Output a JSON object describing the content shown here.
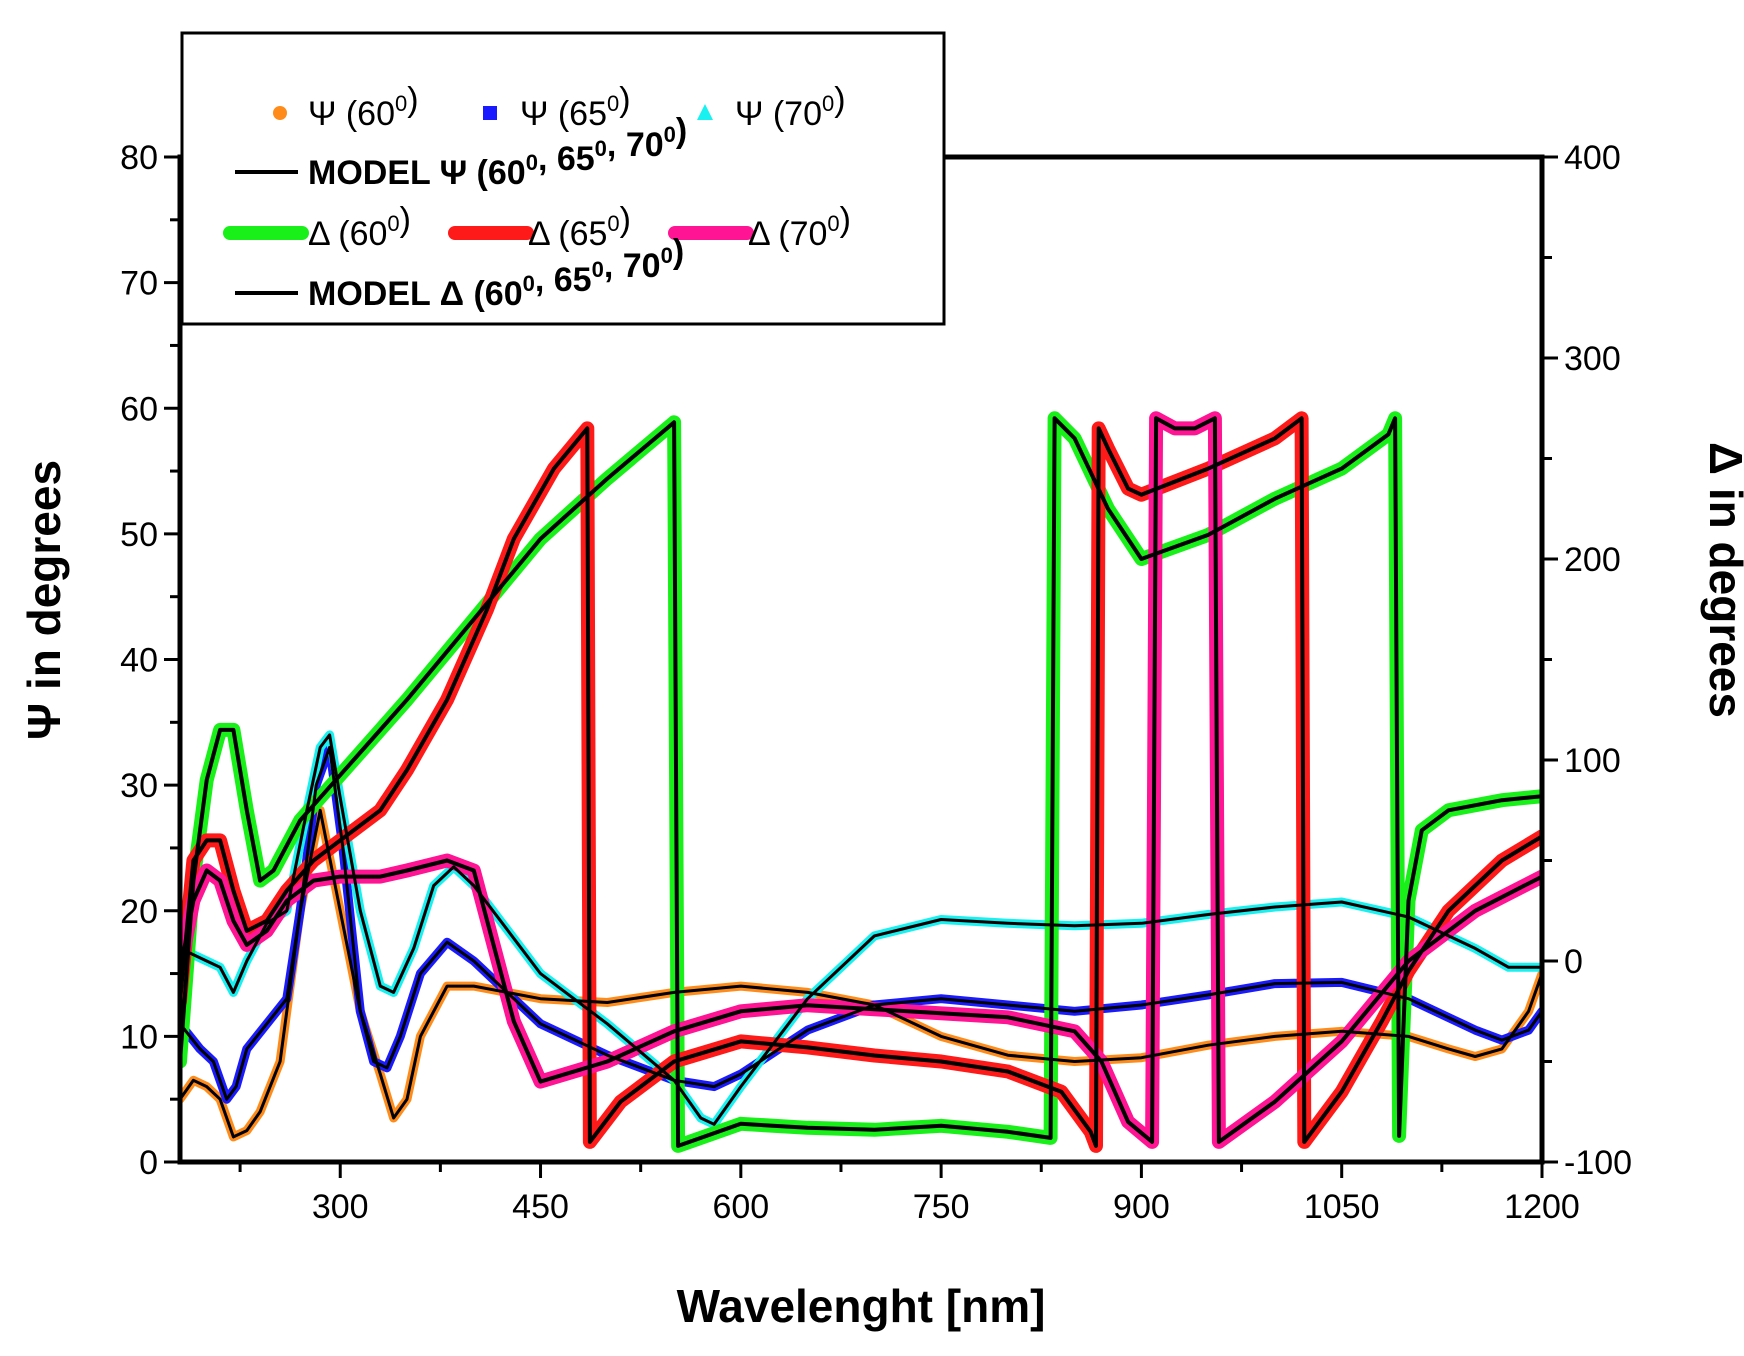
{
  "chart_data": {
    "type": "line",
    "xlabel": "Wavelenght [nm]",
    "ylabel_left": "Ψ in degrees",
    "ylabel_right": "Δ in degrees",
    "xlim": [
      180,
      1200
    ],
    "ylim_left": [
      0,
      80
    ],
    "ylim_right": [
      -100,
      400
    ],
    "x_ticks": [
      300,
      450,
      600,
      750,
      900,
      1050,
      1200
    ],
    "y_left_ticks": [
      0,
      10,
      20,
      30,
      40,
      50,
      60,
      70,
      80
    ],
    "y_right_ticks": [
      -100,
      0,
      100,
      200,
      300,
      400
    ],
    "grid": false,
    "legend_position": "top-left",
    "legend": [
      {
        "label": "Ψ (60",
        "sup": "0",
        "tail": ")",
        "kind": "marker-circle",
        "color": "#ff8c1a"
      },
      {
        "label": "Ψ (65",
        "sup": "0",
        "tail": ")",
        "kind": "marker-square",
        "color": "#1a1aff"
      },
      {
        "label": "Ψ (70",
        "sup": "0",
        "tail": ")",
        "kind": "marker-triangle",
        "color": "#19f0f0"
      },
      {
        "label": "MODEL Ψ (60",
        "sup": "0",
        "tail": ", 65",
        "sup2": "0",
        "tail2": ", 70",
        "sup3": "0",
        "tail3": ")",
        "kind": "line",
        "color": "#000000"
      },
      {
        "label": "Δ (60",
        "sup": "0",
        "tail": ")",
        "kind": "thick-line",
        "color": "#19f019"
      },
      {
        "label": "Δ (65",
        "sup": "0",
        "tail": ")",
        "kind": "thick-line",
        "color": "#ff1a1a"
      },
      {
        "label": "Δ (70",
        "sup": "0",
        "tail": ")",
        "kind": "thick-line",
        "color": "#ff1493"
      },
      {
        "label": "MODEL Δ (60",
        "sup": "0",
        "tail": ", 65",
        "sup2": "0",
        "tail2": ", 70",
        "sup3": "0",
        "tail3": ")",
        "kind": "line",
        "color": "#000000"
      }
    ],
    "series": [
      {
        "name": "Ψ (60°)",
        "axis": "left",
        "color": "#ff8c1a",
        "width": 9,
        "points": [
          [
            180,
            5
          ],
          [
            190,
            6.5
          ],
          [
            200,
            6
          ],
          [
            210,
            5
          ],
          [
            220,
            2
          ],
          [
            230,
            2.5
          ],
          [
            240,
            4
          ],
          [
            255,
            8
          ],
          [
            270,
            20
          ],
          [
            285,
            28
          ],
          [
            300,
            20
          ],
          [
            315,
            12
          ],
          [
            330,
            7
          ],
          [
            340,
            3.5
          ],
          [
            350,
            5
          ],
          [
            360,
            10
          ],
          [
            380,
            14
          ],
          [
            400,
            14
          ],
          [
            450,
            13
          ],
          [
            500,
            12.7
          ],
          [
            550,
            13.5
          ],
          [
            600,
            14
          ],
          [
            650,
            13.5
          ],
          [
            700,
            12.5
          ],
          [
            750,
            10
          ],
          [
            800,
            8.5
          ],
          [
            850,
            8
          ],
          [
            900,
            8.3
          ],
          [
            950,
            9.3
          ],
          [
            1000,
            10
          ],
          [
            1050,
            10.4
          ],
          [
            1100,
            10
          ],
          [
            1130,
            9
          ],
          [
            1150,
            8.4
          ],
          [
            1170,
            9
          ],
          [
            1190,
            12
          ],
          [
            1200,
            15
          ]
        ]
      },
      {
        "name": "Ψ (65°)",
        "axis": "left",
        "color": "#1a1aff",
        "width": 9,
        "points": [
          [
            180,
            11
          ],
          [
            195,
            9
          ],
          [
            205,
            8
          ],
          [
            215,
            5
          ],
          [
            222,
            6
          ],
          [
            230,
            9
          ],
          [
            245,
            11
          ],
          [
            260,
            13
          ],
          [
            270,
            20
          ],
          [
            282,
            30
          ],
          [
            292,
            33
          ],
          [
            302,
            25
          ],
          [
            315,
            12
          ],
          [
            325,
            8
          ],
          [
            335,
            7.5
          ],
          [
            345,
            10
          ],
          [
            360,
            15
          ],
          [
            380,
            17.5
          ],
          [
            400,
            16
          ],
          [
            450,
            11
          ],
          [
            500,
            8.5
          ],
          [
            550,
            6.5
          ],
          [
            580,
            6
          ],
          [
            600,
            7
          ],
          [
            650,
            10.5
          ],
          [
            700,
            12.5
          ],
          [
            750,
            13
          ],
          [
            800,
            12.5
          ],
          [
            850,
            12
          ],
          [
            900,
            12.5
          ],
          [
            950,
            13.3
          ],
          [
            1000,
            14.2
          ],
          [
            1050,
            14.3
          ],
          [
            1100,
            13
          ],
          [
            1150,
            10.5
          ],
          [
            1170,
            9.7
          ],
          [
            1190,
            10.5
          ],
          [
            1200,
            12
          ]
        ]
      },
      {
        "name": "Ψ (70°)",
        "axis": "left",
        "color": "#19f0f0",
        "width": 9,
        "points": [
          [
            180,
            17
          ],
          [
            200,
            16
          ],
          [
            210,
            15.5
          ],
          [
            220,
            13.5
          ],
          [
            230,
            16
          ],
          [
            245,
            19
          ],
          [
            260,
            20
          ],
          [
            275,
            28
          ],
          [
            285,
            33
          ],
          [
            292,
            34
          ],
          [
            300,
            29
          ],
          [
            315,
            20
          ],
          [
            330,
            14
          ],
          [
            340,
            13.5
          ],
          [
            355,
            17
          ],
          [
            370,
            22
          ],
          [
            385,
            23.5
          ],
          [
            400,
            22
          ],
          [
            450,
            15
          ],
          [
            500,
            11
          ],
          [
            550,
            6.5
          ],
          [
            570,
            3.5
          ],
          [
            580,
            3
          ],
          [
            600,
            6
          ],
          [
            650,
            13
          ],
          [
            700,
            18
          ],
          [
            750,
            19.3
          ],
          [
            800,
            19
          ],
          [
            850,
            18.8
          ],
          [
            900,
            19
          ],
          [
            950,
            19.7
          ],
          [
            1000,
            20.3
          ],
          [
            1050,
            20.7
          ],
          [
            1100,
            19.5
          ],
          [
            1150,
            17
          ],
          [
            1175,
            15.5
          ],
          [
            1200,
            15.5
          ]
        ]
      },
      {
        "name": "Δ (60°)",
        "axis": "right",
        "color": "#19f019",
        "width": 14,
        "points": [
          [
            180,
            -50
          ],
          [
            190,
            40
          ],
          [
            200,
            90
          ],
          [
            210,
            115
          ],
          [
            220,
            115
          ],
          [
            230,
            75
          ],
          [
            240,
            40
          ],
          [
            250,
            45
          ],
          [
            270,
            70
          ],
          [
            290,
            85
          ],
          [
            310,
            100
          ],
          [
            350,
            130
          ],
          [
            400,
            170
          ],
          [
            450,
            210
          ],
          [
            500,
            240
          ],
          [
            550,
            268
          ],
          [
            553,
            -92
          ],
          [
            600,
            -81
          ],
          [
            650,
            -83
          ],
          [
            700,
            -84
          ],
          [
            750,
            -82
          ],
          [
            800,
            -85
          ],
          [
            832,
            -88
          ],
          [
            835,
            270
          ],
          [
            850,
            260
          ],
          [
            875,
            225
          ],
          [
            900,
            200
          ],
          [
            950,
            212
          ],
          [
            1000,
            230
          ],
          [
            1050,
            245
          ],
          [
            1085,
            262
          ],
          [
            1090,
            270
          ],
          [
            1093,
            -87
          ],
          [
            1100,
            30
          ],
          [
            1110,
            65
          ],
          [
            1130,
            75
          ],
          [
            1170,
            80
          ],
          [
            1200,
            82
          ]
        ]
      },
      {
        "name": "Δ (65°)",
        "axis": "right",
        "color": "#ff1a1a",
        "width": 14,
        "points": [
          [
            180,
            -20
          ],
          [
            190,
            50
          ],
          [
            200,
            60
          ],
          [
            210,
            60
          ],
          [
            220,
            35
          ],
          [
            230,
            15
          ],
          [
            245,
            20
          ],
          [
            260,
            35
          ],
          [
            280,
            50
          ],
          [
            300,
            60
          ],
          [
            330,
            75
          ],
          [
            350,
            95
          ],
          [
            380,
            130
          ],
          [
            410,
            175
          ],
          [
            430,
            210
          ],
          [
            460,
            245
          ],
          [
            485,
            265
          ],
          [
            487,
            -90
          ],
          [
            510,
            -70
          ],
          [
            550,
            -50
          ],
          [
            600,
            -40
          ],
          [
            650,
            -43
          ],
          [
            700,
            -47
          ],
          [
            750,
            -50
          ],
          [
            800,
            -55
          ],
          [
            840,
            -65
          ],
          [
            862,
            -85
          ],
          [
            866,
            -92
          ],
          [
            868,
            265
          ],
          [
            875,
            255
          ],
          [
            890,
            235
          ],
          [
            900,
            232
          ],
          [
            950,
            245
          ],
          [
            1000,
            260
          ],
          [
            1020,
            270
          ],
          [
            1022,
            -90
          ],
          [
            1050,
            -65
          ],
          [
            1080,
            -30
          ],
          [
            1100,
            -5
          ],
          [
            1130,
            25
          ],
          [
            1170,
            50
          ],
          [
            1200,
            62
          ]
        ]
      },
      {
        "name": "Δ (70°)",
        "axis": "right",
        "color": "#ff1493",
        "width": 14,
        "points": [
          [
            180,
            -5
          ],
          [
            190,
            30
          ],
          [
            200,
            45
          ],
          [
            210,
            40
          ],
          [
            220,
            20
          ],
          [
            230,
            8
          ],
          [
            245,
            15
          ],
          [
            260,
            30
          ],
          [
            280,
            40
          ],
          [
            300,
            42
          ],
          [
            330,
            42
          ],
          [
            350,
            45
          ],
          [
            380,
            50
          ],
          [
            400,
            45
          ],
          [
            430,
            -30
          ],
          [
            450,
            -60
          ],
          [
            500,
            -50
          ],
          [
            550,
            -35
          ],
          [
            600,
            -25
          ],
          [
            650,
            -22
          ],
          [
            700,
            -24
          ],
          [
            750,
            -26
          ],
          [
            800,
            -28
          ],
          [
            850,
            -35
          ],
          [
            870,
            -50
          ],
          [
            890,
            -80
          ],
          [
            908,
            -90
          ],
          [
            911,
            270
          ],
          [
            925,
            265
          ],
          [
            940,
            265
          ],
          [
            955,
            270
          ],
          [
            958,
            -90
          ],
          [
            1000,
            -70
          ],
          [
            1050,
            -40
          ],
          [
            1100,
            0
          ],
          [
            1150,
            25
          ],
          [
            1200,
            42
          ]
        ]
      },
      {
        "name": "MODEL Ψ",
        "axis": "left",
        "color": "#000000",
        "width": 3,
        "model_of": [
          0,
          1,
          2
        ]
      },
      {
        "name": "MODEL Δ",
        "axis": "right",
        "color": "#000000",
        "width": 4,
        "model_of": [
          3,
          4,
          5
        ]
      }
    ]
  }
}
